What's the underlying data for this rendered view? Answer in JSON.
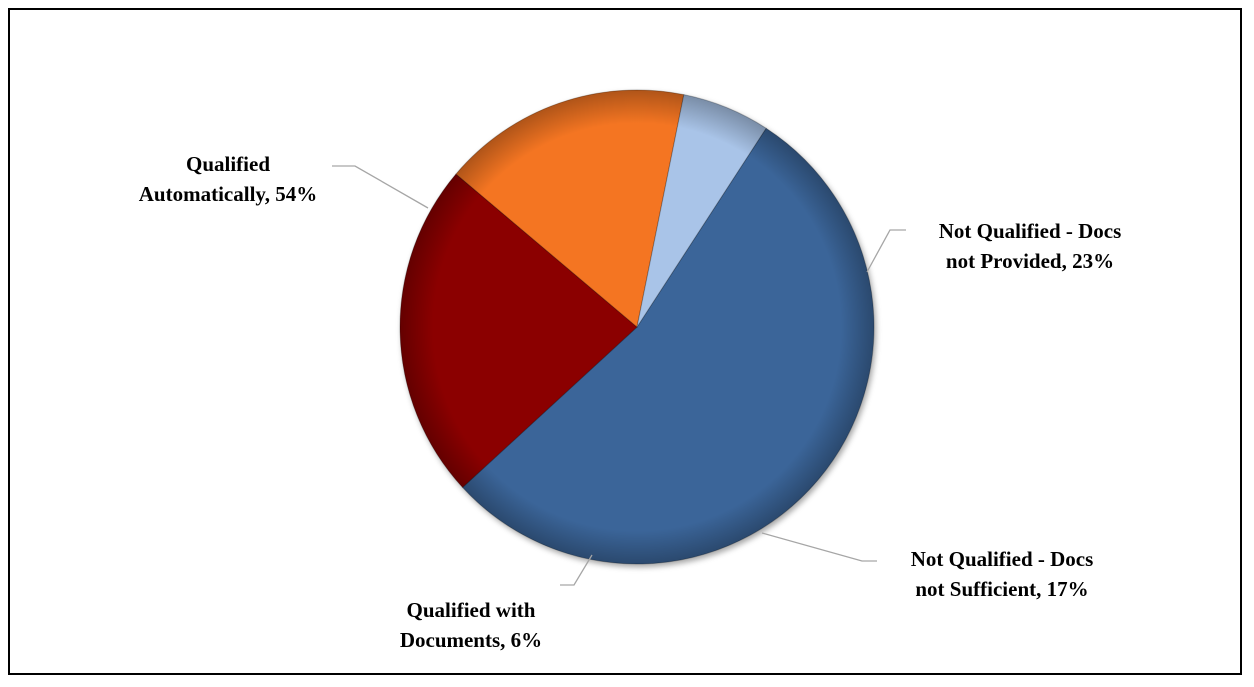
{
  "chart_data": {
    "type": "pie",
    "title": "",
    "slices": [
      {
        "name": "Qualified Automatically",
        "value": 54,
        "label_lines": [
          "Qualified",
          "Automatically, 54%"
        ],
        "color": "#3A6599"
      },
      {
        "name": "Not Qualified - Docs not Provided",
        "value": 23,
        "label_lines": [
          "Not Qualified - Docs",
          "not Provided, 23%"
        ],
        "color": "#8B0000"
      },
      {
        "name": "Not Qualified - Docs not Sufficient",
        "value": 17,
        "label_lines": [
          "Not Qualified - Docs",
          "not Sufficient, 17%"
        ],
        "color": "#F47521"
      },
      {
        "name": "Qualified with Documents",
        "value": 6,
        "label_lines": [
          "Qualified with",
          "Documents, 6%"
        ],
        "color": "#A9C4E8"
      }
    ],
    "legend": "none",
    "data_labels": "outside with leader lines"
  }
}
